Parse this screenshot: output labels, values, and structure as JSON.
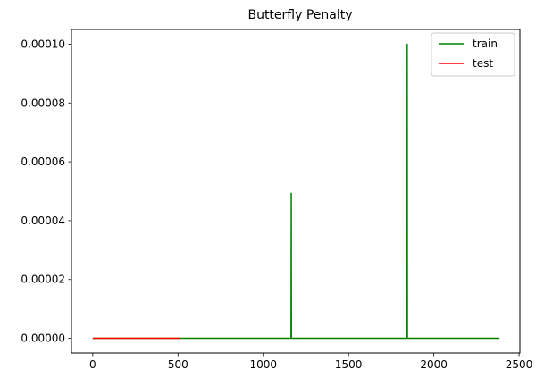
{
  "chart_data": {
    "type": "line",
    "title": "Butterfly Penalty",
    "xlabel": "",
    "ylabel": "",
    "xlim": [
      -125,
      2505
    ],
    "ylim": [
      -5e-06,
      0.000105
    ],
    "xticks": [
      0,
      500,
      1000,
      1500,
      2000,
      2500
    ],
    "xtick_labels": [
      "0",
      "500",
      "1000",
      "1500",
      "2000",
      "2500"
    ],
    "yticks": [
      0,
      2e-05,
      4e-05,
      6e-05,
      8e-05,
      0.0001
    ],
    "ytick_labels": [
      "0.00000",
      "0.00002",
      "0.00004",
      "0.00006",
      "0.00008",
      "0.00010"
    ],
    "grid": false,
    "legend_position": "top-right",
    "series": [
      {
        "name": "train",
        "color": "#008000",
        "x": [
          0,
          1163,
          1164,
          1165,
          1843,
          1844,
          1845,
          2385
        ],
        "y": [
          0,
          0,
          4.93e-05,
          0,
          0,
          0.0001,
          0,
          0
        ]
      },
      {
        "name": "test",
        "color": "#ff0000",
        "x": [
          0,
          510
        ],
        "y": [
          0,
          0
        ]
      }
    ]
  }
}
